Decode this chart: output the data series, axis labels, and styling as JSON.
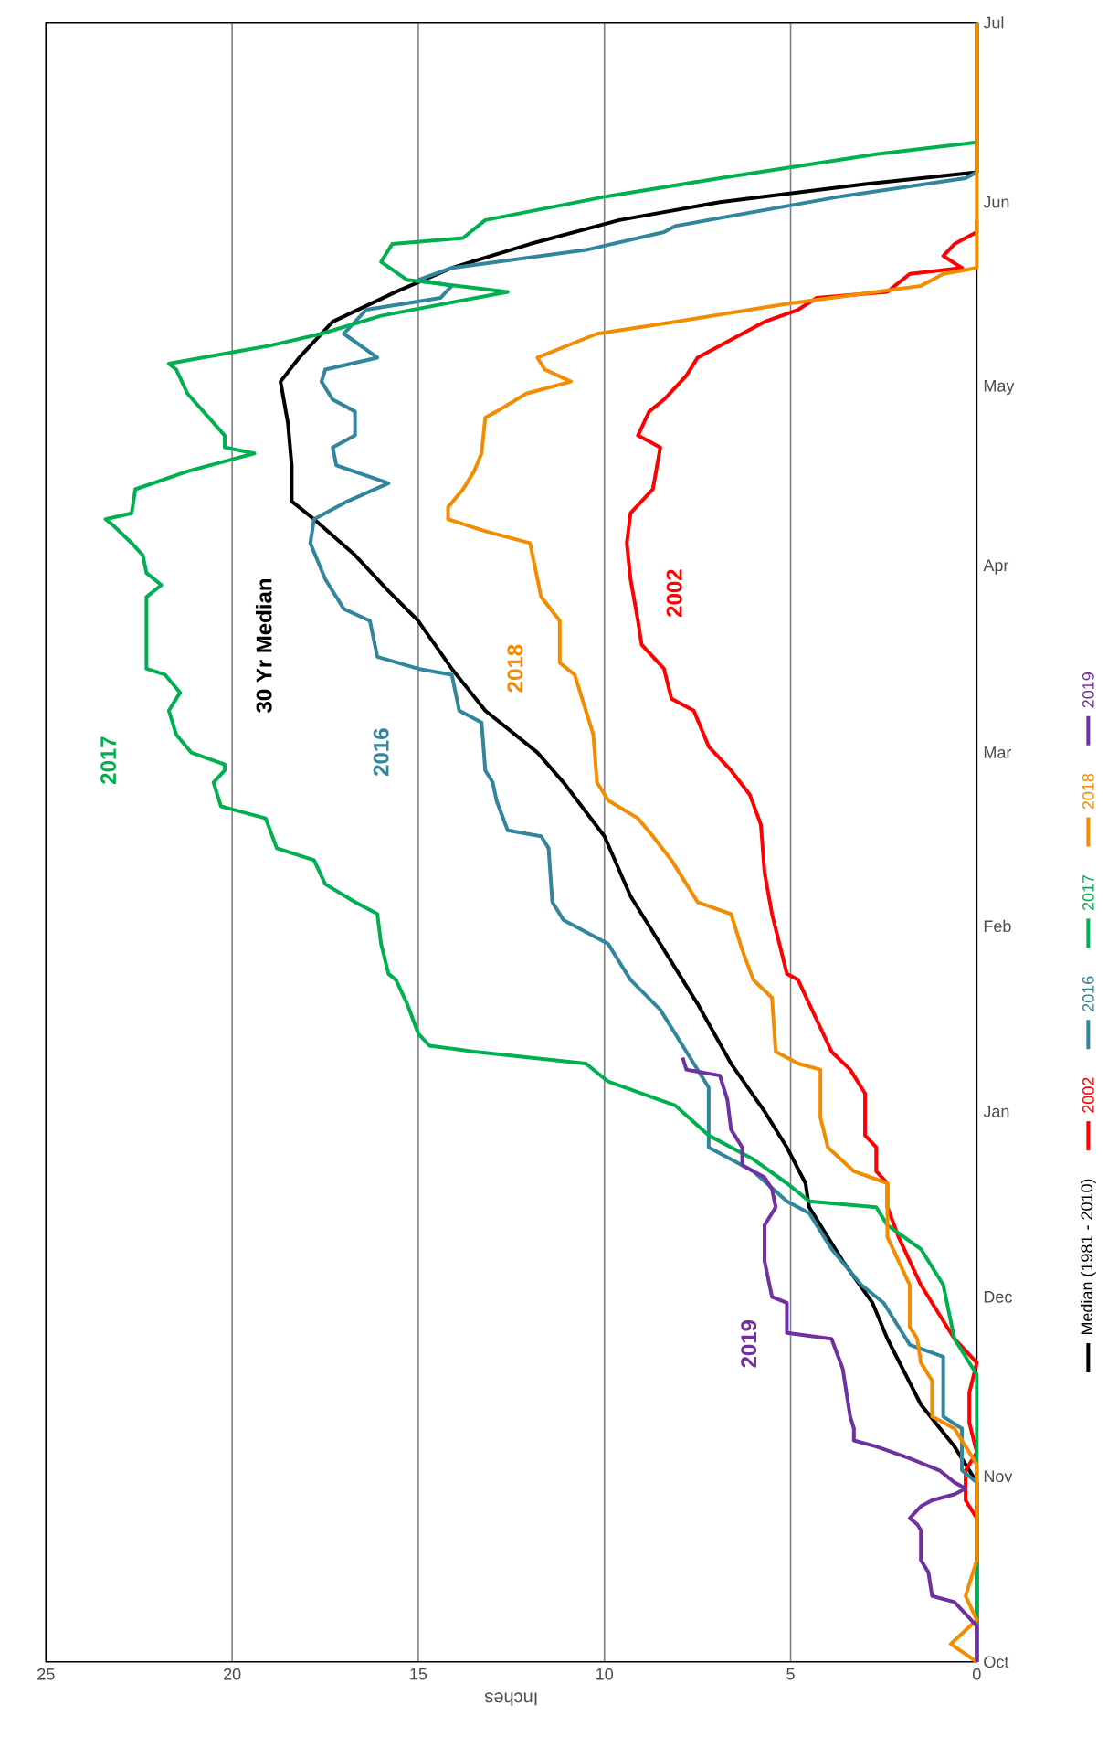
{
  "chart_data": {
    "type": "line",
    "orientation": "horizontal",
    "xlabel": "Inches",
    "xlim": [
      25,
      0
    ],
    "xticks": [
      25,
      20,
      15,
      10,
      5,
      0
    ],
    "ylim": [
      "2019-10-01",
      "2020-07-01"
    ],
    "yticks": [
      {
        "value": "2019-10-01",
        "label": "Oct"
      },
      {
        "value": "2019-11-01",
        "label": "Nov"
      },
      {
        "value": "2019-12-01",
        "label": "Dec"
      },
      {
        "value": "2020-01-01",
        "label": "Jan"
      },
      {
        "value": "2020-02-01",
        "label": "Feb"
      },
      {
        "value": "2020-03-01",
        "label": "Mar"
      },
      {
        "value": "2020-04-01",
        "label": "Apr"
      },
      {
        "value": "2020-05-01",
        "label": "May"
      },
      {
        "value": "2020-06-01",
        "label": "Jun"
      },
      {
        "value": "2020-07-01",
        "label": "Jul"
      }
    ],
    "grid": "x",
    "legend": "right",
    "series": [
      {
        "name": "Median (1981 - 2010)",
        "color": "#000000",
        "x": [
          "2019-10-01",
          "2019-10-25",
          "2019-10-31",
          "2019-11-06",
          "2019-11-13",
          "2019-11-24",
          "2019-11-30",
          "2019-12-07",
          "2019-12-16",
          "2019-12-20",
          "2019-12-26",
          "2020-01-01",
          "2020-01-09",
          "2020-01-19",
          "2020-01-28",
          "2020-02-06",
          "2020-02-16",
          "2020-02-25",
          "2020-03-01",
          "2020-03-08",
          "2020-03-15",
          "2020-03-23",
          "2020-03-28",
          "2020-04-03",
          "2020-04-09",
          "2020-04-12",
          "2020-04-18",
          "2020-04-25",
          "2020-05-02",
          "2020-05-06",
          "2020-05-12",
          "2020-05-17",
          "2020-05-21",
          "2020-05-25",
          "2020-05-29",
          "2020-06-01",
          "2020-06-04",
          "2020-06-06",
          "2020-07-01"
        ],
        "values": [
          0,
          0,
          0,
          0.6,
          1.5,
          2.4,
          2.8,
          3.6,
          4.5,
          4.6,
          5.1,
          5.7,
          6.6,
          7.5,
          8.4,
          9.3,
          10.0,
          11.1,
          11.8,
          13.2,
          14.1,
          15.0,
          15.8,
          16.7,
          17.8,
          18.4,
          18.4,
          18.5,
          18.7,
          18.2,
          17.3,
          15.6,
          14.1,
          12.0,
          9.6,
          6.9,
          3.0,
          0,
          0
        ]
      },
      {
        "name": "2002",
        "color": "#ff0000",
        "x": [
          "2019-10-01",
          "2019-10-25",
          "2019-10-28",
          "2019-11-02",
          "2019-11-05",
          "2019-11-10",
          "2019-11-15",
          "2019-11-20",
          "2019-11-24",
          "2019-11-30",
          "2019-12-03",
          "2019-12-07",
          "2019-12-11",
          "2019-12-16",
          "2019-12-20",
          "2019-12-22",
          "2019-12-26",
          "2019-12-28",
          "2020-01-04",
          "2020-01-08",
          "2020-01-11",
          "2020-01-15",
          "2020-01-19",
          "2020-01-23",
          "2020-01-24",
          "2020-02-03",
          "2020-02-10",
          "2020-02-18",
          "2020-02-23",
          "2020-02-27",
          "2020-03-02",
          "2020-03-08",
          "2020-03-10",
          "2020-03-15",
          "2020-03-19",
          "2020-03-23",
          "2020-03-30",
          "2020-04-05",
          "2020-04-10",
          "2020-04-14",
          "2020-04-21",
          "2020-04-23",
          "2020-04-27",
          "2020-04-29",
          "2020-05-03",
          "2020-05-06",
          "2020-05-10",
          "2020-05-12",
          "2020-05-14",
          "2020-05-16",
          "2020-05-17",
          "2020-05-20",
          "2020-05-21",
          "2020-05-23",
          "2020-05-25",
          "2020-05-27",
          "2020-05-29"
        ],
        "values": [
          0,
          0,
          0.3,
          0.3,
          0,
          0.2,
          0.2,
          0,
          0.6,
          1.2,
          1.5,
          1.8,
          2.1,
          2.4,
          2.4,
          2.7,
          2.7,
          3.0,
          3.0,
          3.4,
          3.9,
          4.2,
          4.5,
          4.8,
          5.1,
          5.5,
          5.7,
          5.8,
          6.1,
          6.6,
          7.2,
          7.6,
          8.2,
          8.4,
          9.0,
          9.1,
          9.3,
          9.4,
          9.3,
          8.7,
          8.5,
          9.1,
          8.8,
          8.4,
          7.8,
          7.5,
          6.3,
          5.7,
          4.8,
          4.3,
          2.4,
          1.8,
          0.4,
          0.9,
          0.6,
          0,
          0
        ]
      },
      {
        "name": "2016",
        "color": "#31859c",
        "x": [
          "2019-10-01",
          "2019-10-31",
          "2019-11-02",
          "2019-11-09",
          "2019-11-11",
          "2019-11-21",
          "2019-11-23",
          "2019-11-30",
          "2019-12-03",
          "2019-12-09",
          "2019-12-15",
          "2019-12-17",
          "2019-12-22",
          "2019-12-26",
          "2020-01-05",
          "2020-01-11",
          "2020-01-18",
          "2020-01-23",
          "2020-01-29",
          "2020-02-02",
          "2020-02-05",
          "2020-02-14",
          "2020-02-16",
          "2020-02-17",
          "2020-02-22",
          "2020-02-25",
          "2020-02-27",
          "2020-03-06",
          "2020-03-08",
          "2020-03-14",
          "2020-03-15",
          "2020-03-17",
          "2020-03-23",
          "2020-03-25",
          "2020-03-30",
          "2020-04-05",
          "2020-04-09",
          "2020-04-12",
          "2020-04-15",
          "2020-04-18",
          "2020-04-21",
          "2020-04-23",
          "2020-04-27",
          "2020-04-29",
          "2020-05-02",
          "2020-05-04",
          "2020-05-06",
          "2020-05-10",
          "2020-05-14",
          "2020-05-16",
          "2020-05-18",
          "2020-05-19",
          "2020-05-21",
          "2020-05-24",
          "2020-05-27",
          "2020-05-28",
          "2020-06-02",
          "2020-06-05",
          "2020-06-06",
          "2020-07-01"
        ],
        "values": [
          0,
          0,
          0.4,
          0.4,
          0.9,
          0.9,
          1.8,
          2.5,
          3.1,
          3.9,
          4.5,
          5.1,
          6.0,
          7.2,
          7.2,
          7.8,
          8.5,
          9.3,
          9.9,
          11.1,
          11.4,
          11.5,
          11.7,
          12.6,
          12.9,
          13.0,
          13.2,
          13.3,
          13.9,
          14.1,
          15.0,
          16.1,
          16.3,
          17.0,
          17.5,
          17.9,
          17.8,
          16.9,
          15.8,
          17.2,
          17.3,
          16.7,
          16.7,
          17.3,
          17.6,
          17.5,
          16.1,
          17.0,
          16.4,
          14.4,
          14.1,
          15.0,
          14.1,
          10.5,
          8.4,
          8.1,
          3.6,
          0.3,
          0,
          0
        ]
      },
      {
        "name": "2017",
        "color": "#00b050",
        "x": [
          "2019-10-01",
          "2019-11-18",
          "2019-11-24",
          "2019-12-03",
          "2019-12-09",
          "2019-12-13",
          "2019-12-16",
          "2019-12-17",
          "2019-12-20",
          "2019-12-24",
          "2019-12-28",
          "2020-01-02",
          "2020-01-06",
          "2020-01-09",
          "2020-01-11",
          "2020-01-12",
          "2020-01-14",
          "2020-01-19",
          "2020-01-23",
          "2020-01-24",
          "2020-01-29",
          "2020-02-03",
          "2020-02-05",
          "2020-02-08",
          "2020-02-12",
          "2020-02-14",
          "2020-02-19",
          "2020-02-21",
          "2020-02-25",
          "2020-02-27",
          "2020-02-28",
          "2020-03-01",
          "2020-03-04",
          "2020-03-08",
          "2020-03-11",
          "2020-03-14",
          "2020-03-15",
          "2020-03-27",
          "2020-03-28",
          "2020-03-29",
          "2020-03-31",
          "2020-04-03",
          "2020-04-05",
          "2020-04-08",
          "2020-04-09",
          "2020-04-10",
          "2020-04-14",
          "2020-04-17",
          "2020-04-20",
          "2020-04-21",
          "2020-04-23",
          "2020-04-30",
          "2020-05-04",
          "2020-05-05",
          "2020-05-08",
          "2020-05-10",
          "2020-05-13",
          "2020-05-17",
          "2020-05-19",
          "2020-05-22",
          "2020-05-25",
          "2020-05-26",
          "2020-05-29",
          "2020-06-02",
          "2020-06-05",
          "2020-06-09",
          "2020-06-11",
          "2020-07-01"
        ],
        "values": [
          0,
          0,
          0.6,
          0.9,
          1.5,
          2.4,
          2.7,
          4.5,
          5.1,
          6.0,
          7.2,
          8.1,
          9.9,
          10.5,
          13.5,
          14.7,
          15.0,
          15.3,
          15.6,
          15.8,
          16.0,
          16.1,
          16.7,
          17.5,
          17.8,
          18.8,
          19.1,
          20.3,
          20.5,
          20.2,
          20.2,
          21.1,
          21.5,
          21.7,
          21.4,
          21.8,
          22.3,
          22.3,
          22.1,
          21.9,
          22.3,
          22.4,
          22.7,
          23.2,
          23.4,
          22.7,
          22.6,
          21.2,
          19.4,
          20.2,
          20.2,
          21.2,
          21.5,
          21.7,
          19.0,
          17.6,
          16.0,
          12.6,
          15.3,
          16.0,
          15.7,
          13.8,
          13.2,
          9.9,
          6.9,
          2.7,
          0,
          0
        ]
      },
      {
        "name": "2018",
        "color": "#f28c00",
        "x": [
          "2019-10-01",
          "2019-10-04",
          "2019-10-08",
          "2019-10-12",
          "2019-10-18",
          "2019-11-03",
          "2019-11-06",
          "2019-11-09",
          "2019-11-11",
          "2019-11-17",
          "2019-11-20",
          "2019-11-24",
          "2019-11-26",
          "2019-12-03",
          "2019-12-07",
          "2019-12-11",
          "2019-12-20",
          "2019-12-22",
          "2019-12-26",
          "2019-12-31",
          "2020-01-08",
          "2020-01-09",
          "2020-01-11",
          "2020-01-20",
          "2020-01-23",
          "2020-01-28",
          "2020-02-03",
          "2020-02-05",
          "2020-02-08",
          "2020-02-12",
          "2020-02-16",
          "2020-02-19",
          "2020-02-22",
          "2020-02-25",
          "2020-03-04",
          "2020-03-10",
          "2020-03-14",
          "2020-03-16",
          "2020-03-23",
          "2020-03-27",
          "2020-03-30",
          "2020-04-05",
          "2020-04-07",
          "2020-04-09",
          "2020-04-11",
          "2020-04-14",
          "2020-04-17",
          "2020-04-20",
          "2020-04-26",
          "2020-04-27",
          "2020-04-30",
          "2020-05-02",
          "2020-05-04",
          "2020-05-06",
          "2020-05-10",
          "2020-05-12",
          "2020-05-15",
          "2020-05-17",
          "2020-05-18",
          "2020-05-20",
          "2020-05-21",
          "2020-07-01"
        ],
        "values": [
          0,
          0.7,
          0,
          0.3,
          0,
          0,
          0.3,
          0.6,
          1.2,
          1.2,
          1.5,
          1.6,
          1.8,
          1.8,
          2.1,
          2.4,
          2.4,
          3.3,
          4.0,
          4.2,
          4.2,
          4.8,
          5.4,
          5.5,
          6.0,
          6.3,
          6.6,
          7.5,
          7.8,
          8.2,
          8.7,
          9.1,
          9.9,
          10.2,
          10.3,
          10.6,
          10.8,
          11.2,
          11.2,
          11.7,
          11.8,
          12.0,
          13.2,
          14.2,
          14.2,
          13.8,
          13.5,
          13.3,
          13.2,
          12.9,
          12.1,
          10.9,
          11.6,
          11.8,
          10.2,
          8.1,
          5.1,
          2.7,
          1.5,
          0.9,
          0,
          0
        ]
      },
      {
        "name": "2019",
        "color": "#7030a0",
        "x": [
          "2019-10-01",
          "2019-10-07",
          "2019-10-09",
          "2019-10-11",
          "2019-10-12",
          "2019-10-16",
          "2019-10-18",
          "2019-10-23",
          "2019-10-24",
          "2019-10-25",
          "2019-10-27",
          "2019-10-28",
          "2019-10-29",
          "2019-10-30",
          "2019-10-31",
          "2019-11-02",
          "2019-11-04",
          "2019-11-06",
          "2019-11-07",
          "2019-11-09",
          "2019-11-11",
          "2019-11-19",
          "2019-11-24",
          "2019-11-25",
          "2019-11-30",
          "2019-12-01",
          "2019-12-07",
          "2019-12-13",
          "2019-12-16",
          "2019-12-19",
          "2019-12-21",
          "2019-12-23",
          "2019-12-26",
          "2019-12-29",
          "2020-01-03",
          "2020-01-07",
          "2020-01-08",
          "2020-01-10"
        ],
        "values": [
          0,
          0,
          0.3,
          0.6,
          1.2,
          1.3,
          1.5,
          1.5,
          1.6,
          1.8,
          1.5,
          1.2,
          0.6,
          0.3,
          0.6,
          1.0,
          1.8,
          2.7,
          3.3,
          3.3,
          3.4,
          3.6,
          3.9,
          5.1,
          5.1,
          5.5,
          5.7,
          5.7,
          5.4,
          5.5,
          5.7,
          6.3,
          6.3,
          6.6,
          6.7,
          6.9,
          7.8,
          7.9
        ]
      }
    ],
    "annotations": [
      "30 Yr Median",
      "2002",
      "2016",
      "2017",
      "2018",
      "2019"
    ]
  }
}
